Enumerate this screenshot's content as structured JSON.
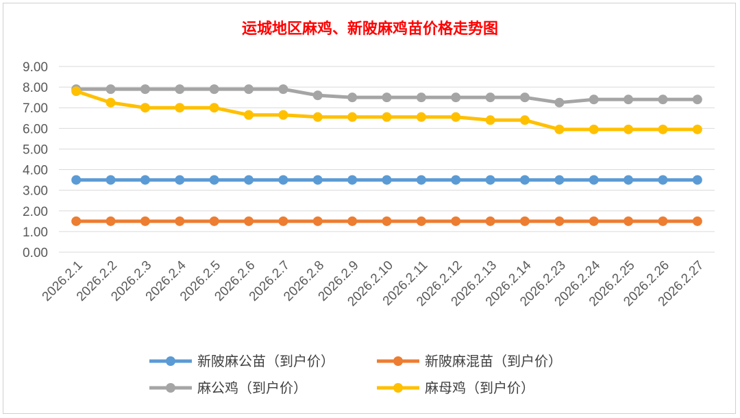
{
  "chart_data": {
    "type": "line",
    "title": "运城地区麻鸡、新陂麻鸡苗价格走势图",
    "title_color": "#ff0000",
    "xlabel": "",
    "ylabel": "",
    "ylim": [
      0,
      9
    ],
    "ytick_step": 1,
    "ytick_labels": [
      "0.00",
      "1.00",
      "2.00",
      "3.00",
      "4.00",
      "5.00",
      "6.00",
      "7.00",
      "8.00",
      "9.00"
    ],
    "grid": true,
    "legend_position": "bottom",
    "categories": [
      "2026.2.1",
      "2026.2.2",
      "2026.2.3",
      "2026.2.4",
      "2026.2.5",
      "2026.2.6",
      "2026.2.7",
      "2026.2.8",
      "2026.2.9",
      "2026.2.10",
      "2026.2.11",
      "2026.2.12",
      "2026.2.13",
      "2026.2.14",
      "2026.2.23",
      "2026.2.24",
      "2026.2.25",
      "2026.2.26",
      "2026.2.27"
    ],
    "series": [
      {
        "name": "新陂麻公苗（到户价）",
        "color": "#5b9bd5",
        "values": [
          3.5,
          3.5,
          3.5,
          3.5,
          3.5,
          3.5,
          3.5,
          3.5,
          3.5,
          3.5,
          3.5,
          3.5,
          3.5,
          3.5,
          3.5,
          3.5,
          3.5,
          3.5,
          3.5
        ]
      },
      {
        "name": "新陂麻混苗（到户价）",
        "color": "#ed7d31",
        "values": [
          1.5,
          1.5,
          1.5,
          1.5,
          1.5,
          1.5,
          1.5,
          1.5,
          1.5,
          1.5,
          1.5,
          1.5,
          1.5,
          1.5,
          1.5,
          1.5,
          1.5,
          1.5,
          1.5
        ]
      },
      {
        "name": "麻公鸡（到户价）",
        "color": "#a5a5a5",
        "values": [
          7.9,
          7.9,
          7.9,
          7.9,
          7.9,
          7.9,
          7.9,
          7.6,
          7.5,
          7.5,
          7.5,
          7.5,
          7.5,
          7.5,
          7.25,
          7.4,
          7.4,
          7.4,
          7.4
        ]
      },
      {
        "name": "麻母鸡（到户价）",
        "color": "#ffc000",
        "values": [
          7.8,
          7.25,
          7.0,
          7.0,
          7.0,
          6.65,
          6.65,
          6.55,
          6.55,
          6.55,
          6.55,
          6.55,
          6.4,
          6.4,
          5.95,
          5.95,
          5.95,
          5.95,
          5.95
        ]
      }
    ]
  }
}
